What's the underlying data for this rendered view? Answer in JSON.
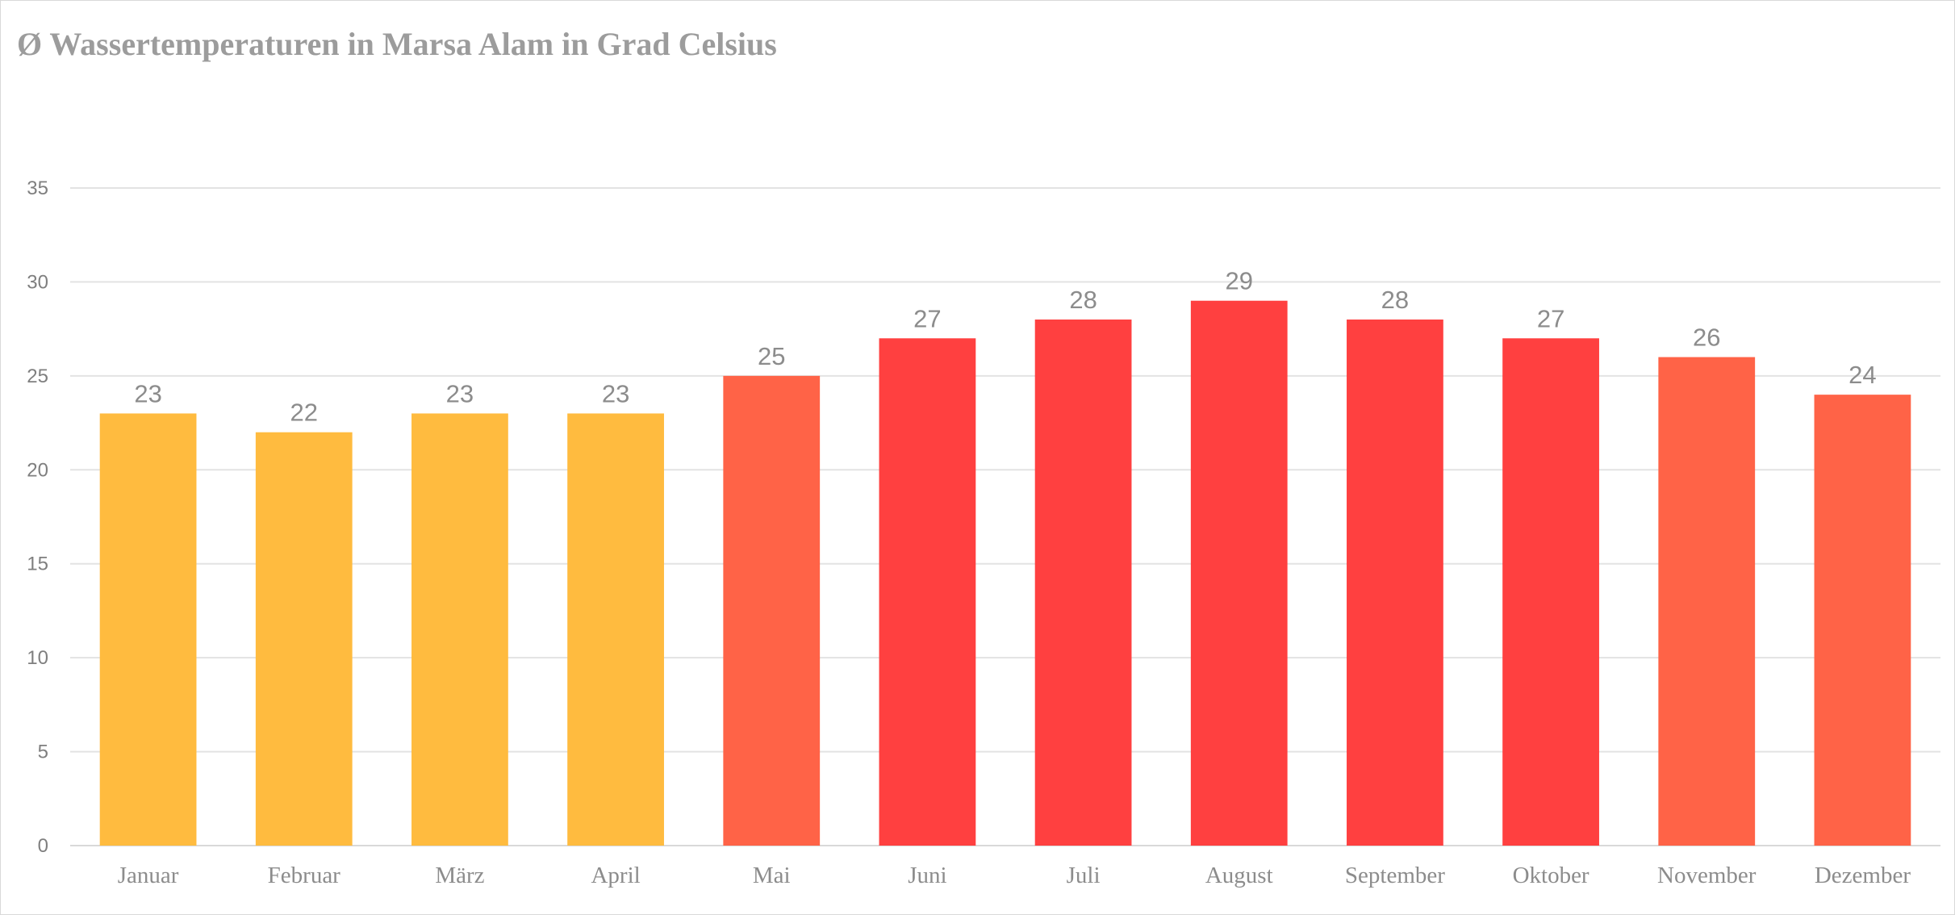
{
  "chart_data": {
    "type": "bar",
    "title": "Ø Wassertemperaturen in Marsa Alam in Grad Celsius",
    "xlabel": "",
    "ylabel": "",
    "categories": [
      "Januar",
      "Februar",
      "März",
      "April",
      "Mai",
      "Juni",
      "Juli",
      "August",
      "September",
      "Oktober",
      "November",
      "Dezember"
    ],
    "series": [
      {
        "values": [
          23,
          22,
          23,
          23,
          25,
          27,
          28,
          29,
          28,
          27,
          26,
          24
        ],
        "colors": [
          "#ffbb3f",
          "#ffbb3f",
          "#ffbb3f",
          "#ffbb3f",
          "#ff6347",
          "#ff4040",
          "#ff4040",
          "#ff4040",
          "#ff4040",
          "#ff4040",
          "#ff6347",
          "#ff6347"
        ]
      }
    ],
    "ylim": [
      0,
      35
    ],
    "yticks": [
      0,
      5,
      10,
      15,
      20,
      25,
      30,
      35
    ],
    "grid": true,
    "data_labels": true,
    "legend": "none"
  }
}
